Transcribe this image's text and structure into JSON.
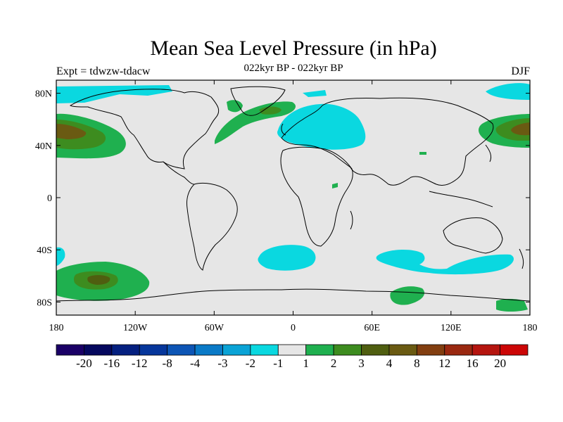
{
  "header": {
    "title": "Mean Sea Level Pressure (in hPa)",
    "subtitle": "022kyr BP - 022kyr BP",
    "left_label": "Expt = tdwzw-tdacw",
    "right_label": "DJF"
  },
  "map": {
    "projection": "cylindrical equidistant",
    "extent": {
      "lon": [
        -180,
        180
      ],
      "lat": [
        -90,
        90
      ]
    },
    "background_color": "#e6e6e6",
    "lat_ticks": [
      {
        "value": 80,
        "label": "80N"
      },
      {
        "value": 40,
        "label": "40N"
      },
      {
        "value": 0,
        "label": "0"
      },
      {
        "value": -40,
        "label": "40S"
      },
      {
        "value": -80,
        "label": "80S"
      }
    ],
    "lon_ticks": [
      {
        "value": -180,
        "label": "180"
      },
      {
        "value": -120,
        "label": "120W"
      },
      {
        "value": -60,
        "label": "60W"
      },
      {
        "value": 0,
        "label": "0"
      },
      {
        "value": 60,
        "label": "60E"
      },
      {
        "value": 120,
        "label": "120E"
      },
      {
        "value": 180,
        "label": "180"
      }
    ]
  },
  "colorbar": {
    "colors": [
      "#1a0066",
      "#05085e",
      "#052080",
      "#06369b",
      "#0d55b5",
      "#0a7ac7",
      "#0aa3d6",
      "#0ad8e0",
      "#e6e6e6",
      "#1fb04f",
      "#3d8c1f",
      "#4f5e10",
      "#6a5a12",
      "#823e10",
      "#9a2810",
      "#b5150f",
      "#cc0606"
    ],
    "labels": [
      "-20",
      "-16",
      "-12",
      "-8",
      "-4",
      "-3",
      "-2",
      "-1",
      "1",
      "2",
      "3",
      "4",
      "8",
      "12",
      "16",
      "20"
    ]
  }
}
